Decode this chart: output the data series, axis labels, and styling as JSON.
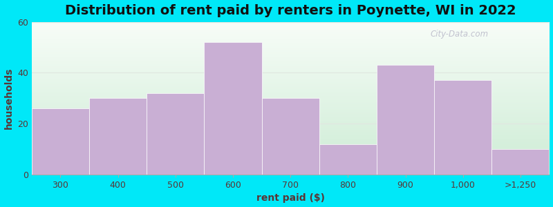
{
  "title": "Distribution of rent paid by renters in Poynette, WI in 2022",
  "xlabel": "rent paid ($)",
  "ylabel": "households",
  "categories": [
    "300",
    "400",
    "500",
    "600",
    "700",
    "800",
    "900",
    "1,000",
    ">1,250"
  ],
  "values": [
    26,
    30,
    32,
    52,
    30,
    12,
    43,
    37,
    10
  ],
  "bar_color": "#c9afd4",
  "bar_edge_color": "#c9afd4",
  "ylim": [
    0,
    60
  ],
  "yticks": [
    0,
    20,
    40,
    60
  ],
  "title_fontsize": 14,
  "label_fontsize": 10,
  "tick_fontsize": 9,
  "outer_bg": "#00e8f8",
  "plot_bg_top": "#f8fdf8",
  "plot_bg_bottom": "#cdecd5",
  "watermark": "City-Data.com",
  "grid_color": "#e0e8e0",
  "text_color": "#5a3535",
  "spine_color": "#aaaaaa"
}
